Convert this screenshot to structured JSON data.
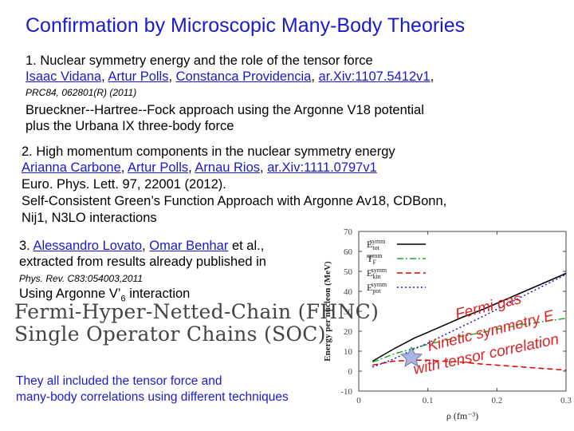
{
  "title": "Confirmation by Microscopic Many-Body Theories",
  "s1": {
    "heading": "1. Nuclear symmetry energy and the role of the tensor force",
    "authors": [
      "Isaac Vidana",
      "Artur Polls",
      "Constanca Providencia",
      "ar.Xiv:1107.5412v1"
    ],
    "journal": "PRC84, 062801(R) (2011)",
    "method_line1": "Brueckner--Hartree--Fock approach using the Argonne V18 potential",
    "method_line2": "plus the Urbana IX three-body force"
  },
  "s2": {
    "heading": "2. High momentum components in the nuclear symmetry energy",
    "authors": [
      "Arianna Carbone",
      "Artur Polls",
      "Arnau Rios",
      "ar.Xiv:1111.0797v1"
    ],
    "journal": "Euro. Phys. Lett. 97, 22001 (2012).",
    "method_line1": "Self-Consistent Green’s Function Approach with Argonne Av18, CDBonn,",
    "method_line2": "Nij1, N3LO interactions"
  },
  "s3": {
    "heading_prefix": "3. ",
    "authors": [
      "Alessandro Lovato",
      "Omar Benhar"
    ],
    "heading_suffix": "et al.,",
    "line2": "extracted from results already published in",
    "journal": "Phys. Rev. C83:054003,2011",
    "using_prefix": "Using Argonne V’",
    "using_sub": "6",
    "using_suffix": " interaction",
    "fhnc": "Fermi-Hyper-Netted-Chain (FHNC)",
    "soc": "Single Operator Chains (SOC)"
  },
  "bottom": {
    "line1": "They all included the tensor force and",
    "line2": "many-body correlations using different techniques"
  },
  "annotations": {
    "fermi_gas": "Fermi gas",
    "kinetic": "Kinetic symmetry E",
    "tensor": "with tensor correlation"
  },
  "chart_data": {
    "type": "line",
    "xlabel": "ρ (fm⁻³)",
    "ylabel": "Energy per nucleon (MeV)",
    "xlim": [
      0,
      0.3
    ],
    "ylim": [
      -10,
      70
    ],
    "xticks": [
      "0",
      "0.1",
      "0.2",
      "0.3"
    ],
    "yticks": [
      "-10",
      "0",
      "10",
      "20",
      "30",
      "40",
      "50",
      "60",
      "70"
    ],
    "legend_position": "top-left",
    "series": [
      {
        "name": "E_tot^symm",
        "color": "#000000",
        "style": "solid",
        "x": [
          0.02,
          0.05,
          0.08,
          0.1,
          0.12,
          0.15,
          0.18,
          0.2,
          0.24,
          0.28,
          0.3
        ],
        "y": [
          5,
          11,
          16.5,
          19.5,
          22.5,
          27,
          31,
          34,
          40,
          46,
          49
        ]
      },
      {
        "name": "T_F^symm",
        "color": "#22aa22",
        "style": "dashdot",
        "x": [
          0.02,
          0.05,
          0.08,
          0.1,
          0.12,
          0.15,
          0.18,
          0.2,
          0.24,
          0.28,
          0.3
        ],
        "y": [
          4.5,
          8.5,
          11.5,
          13.5,
          15,
          17.5,
          19.5,
          21,
          23.5,
          25.5,
          26.5
        ]
      },
      {
        "name": "E_kin^symm",
        "color": "#dd0000",
        "style": "dashed",
        "x": [
          0.02,
          0.05,
          0.08,
          0.1,
          0.12,
          0.15,
          0.18,
          0.2,
          0.24,
          0.28,
          0.3
        ],
        "y": [
          3,
          5,
          5.5,
          5.5,
          5,
          4.5,
          3.5,
          3,
          2,
          1,
          0.5
        ]
      },
      {
        "name": "E_pot^symm",
        "color": "#1a1acc",
        "style": "dotted",
        "x": [
          0.02,
          0.05,
          0.08,
          0.1,
          0.12,
          0.15,
          0.18,
          0.2,
          0.24,
          0.28,
          0.3
        ],
        "y": [
          2,
          6,
          11,
          14,
          17.5,
          22.5,
          27.5,
          31,
          38,
          45,
          48.5
        ]
      }
    ]
  },
  "colors": {
    "link": "#1a1acc",
    "annotation": "#dd2222",
    "star": "#8899cc"
  },
  "icons": {
    "marker": "star-icon"
  }
}
